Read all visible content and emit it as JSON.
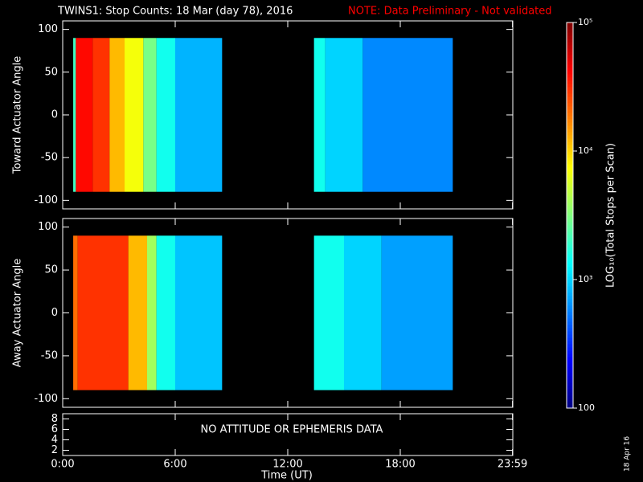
{
  "title": "TWINS1: Stop Counts: 18 Mar (day  78), 2016",
  "note": "NOTE: Data Preliminary - Not validated",
  "date_stamp": "18 Apr 16",
  "time_axis": {
    "label": "Time (UT)",
    "xlim": [
      0,
      24
    ],
    "xticks": [
      {
        "value": 0,
        "label": "0:00"
      },
      {
        "value": 6,
        "label": "6:00"
      },
      {
        "value": 12,
        "label": "12:00"
      },
      {
        "value": 18,
        "label": "18:00"
      },
      {
        "value": 23.983,
        "label": "23:59"
      }
    ]
  },
  "chart_data": [
    {
      "type": "heatmap",
      "ylabel": "Toward Actuator Angle",
      "ylim": [
        -110,
        110
      ],
      "yticks": [
        -100,
        -50,
        0,
        50,
        100
      ],
      "angle_range": [
        -90,
        90
      ],
      "segments": [
        {
          "bins": [
            0.56,
            0.7,
            1.6,
            2.5,
            3.3,
            4.3,
            5,
            6,
            8.5
          ],
          "values": [
            2000,
            40000,
            30000,
            12000,
            7000,
            3000,
            1500,
            800
          ]
        },
        {
          "bins": [
            13.4,
            14,
            16,
            20.8
          ],
          "values": [
            1500,
            1000,
            600
          ]
        }
      ]
    },
    {
      "type": "heatmap",
      "ylabel": "Away Actuator Angle",
      "ylim": [
        -110,
        110
      ],
      "yticks": [
        -100,
        -50,
        0,
        50,
        100
      ],
      "angle_range": [
        -90,
        90
      ],
      "segments": [
        {
          "bins": [
            0.56,
            0.8,
            3.5,
            4.5,
            5,
            6,
            8.5
          ],
          "values": [
            20000,
            30000,
            12000,
            4000,
            1500,
            900
          ]
        },
        {
          "bins": [
            13.4,
            15,
            17,
            20.8
          ],
          "values": [
            1500,
            1000,
            700
          ]
        }
      ]
    },
    {
      "type": "text_panel",
      "ylim": [
        1,
        9
      ],
      "yticks": [
        2,
        4,
        6,
        8
      ],
      "message": "NO ATTITUDE OR EPHEMERIS DATA"
    },
    {
      "type": "colorbar",
      "label": "LOG₁₀(Total Stops per Scan)",
      "log_scale": true,
      "ylim": [
        100,
        100000
      ],
      "yticks": [
        100,
        {
          "value": 1000,
          "label": "10³"
        },
        {
          "value": 10000,
          "label": "10⁴"
        },
        {
          "value": 100000,
          "label": "10⁵"
        }
      ]
    }
  ]
}
